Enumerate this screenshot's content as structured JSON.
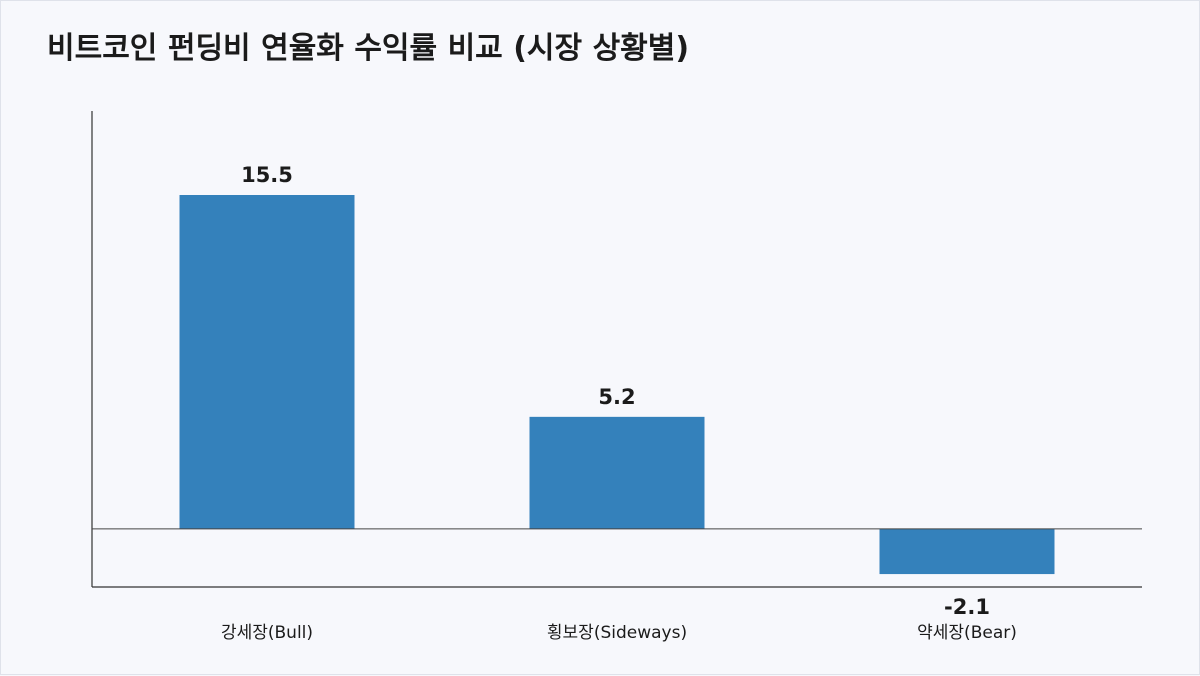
{
  "chart_data": {
    "type": "bar",
    "title": "비트코인 펀딩비 연율화 수익률 비교 (시장 상황별)",
    "categories": [
      "강세장(Bull)",
      "횡보장(Sideways)",
      "약세장(Bear)"
    ],
    "values": [
      15.5,
      5.2,
      -2.1
    ],
    "data_labels": [
      "15.5",
      "5.2",
      "-2.1"
    ],
    "xlabel": "",
    "ylabel": "",
    "ylim": [
      -2.7,
      19.4
    ],
    "grid": false,
    "legend": "none",
    "bar_color": "#3481bb"
  }
}
